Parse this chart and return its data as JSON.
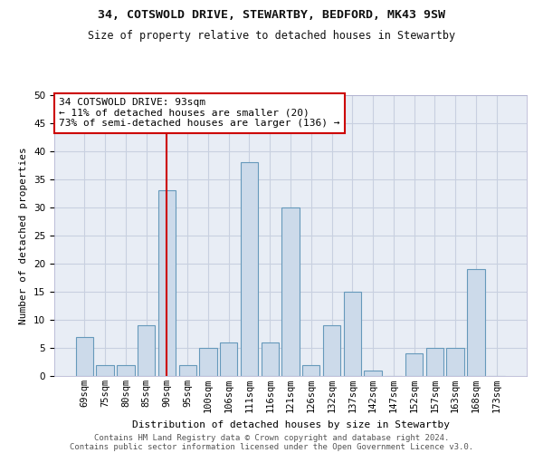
{
  "title1": "34, COTSWOLD DRIVE, STEWARTBY, BEDFORD, MK43 9SW",
  "title2": "Size of property relative to detached houses in Stewartby",
  "xlabel": "Distribution of detached houses by size in Stewartby",
  "ylabel": "Number of detached properties",
  "categories": [
    "69sqm",
    "75sqm",
    "80sqm",
    "85sqm",
    "90sqm",
    "95sqm",
    "100sqm",
    "106sqm",
    "111sqm",
    "116sqm",
    "121sqm",
    "126sqm",
    "132sqm",
    "137sqm",
    "142sqm",
    "147sqm",
    "152sqm",
    "157sqm",
    "163sqm",
    "168sqm",
    "173sqm"
  ],
  "values": [
    7,
    2,
    2,
    9,
    33,
    2,
    5,
    6,
    38,
    6,
    30,
    2,
    9,
    15,
    1,
    0,
    4,
    5,
    5,
    19,
    0
  ],
  "bar_color": "#ccdaea",
  "bar_edge_color": "#6699bb",
  "highlight_index": 4,
  "highlight_line_color": "#cc0000",
  "annotation_text": "34 COTSWOLD DRIVE: 93sqm\n← 11% of detached houses are smaller (20)\n73% of semi-detached houses are larger (136) →",
  "annotation_box_color": "#ffffff",
  "annotation_box_edge_color": "#cc0000",
  "ylim": [
    0,
    50
  ],
  "yticks": [
    0,
    5,
    10,
    15,
    20,
    25,
    30,
    35,
    40,
    45,
    50
  ],
  "bg_color": "#e8edf5",
  "grid_color": "#c8d0e0",
  "footer1": "Contains HM Land Registry data © Crown copyright and database right 2024.",
  "footer2": "Contains public sector information licensed under the Open Government Licence v3.0.",
  "title1_fontsize": 9.5,
  "title2_fontsize": 8.5,
  "xlabel_fontsize": 8,
  "ylabel_fontsize": 8,
  "tick_fontsize": 7.5,
  "annotation_fontsize": 8,
  "footer_fontsize": 6.5
}
